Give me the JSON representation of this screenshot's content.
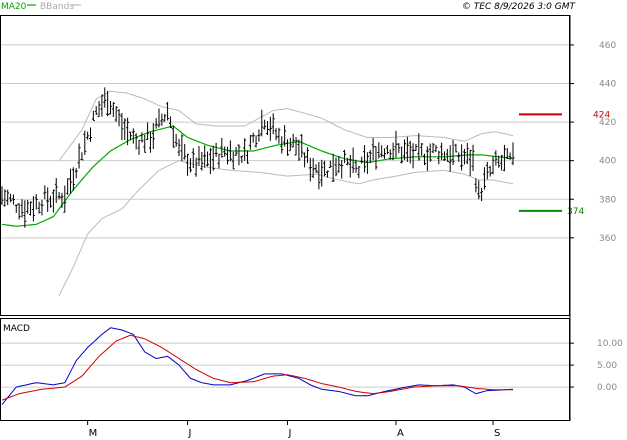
{
  "header": {
    "legend_ma": "MA20",
    "legend_bb": "BBands",
    "copyright": "© TEC 8/9/2026 3:0 GMT"
  },
  "colors": {
    "ma": "#00aa00",
    "bands": "#bbbbbb",
    "price": "#000000",
    "macd": "#0000cc",
    "signal": "#cc0000",
    "resistance": "#cc0000",
    "support": "#008800",
    "grid": "#cccccc",
    "axis_text": "#888888"
  },
  "chart_data": [
    {
      "type": "ohlc",
      "panel": "price",
      "y_ticks": [
        360,
        380,
        400,
        420,
        440,
        460
      ],
      "ylim": [
        320,
        475
      ],
      "x_months": [
        "M",
        "J",
        "J",
        "A",
        "S"
      ],
      "month_bar_index": [
        30,
        65,
        100,
        138,
        172
      ],
      "n_bars": 180,
      "close_keypoints": [
        [
          0,
          382
        ],
        [
          8,
          375
        ],
        [
          15,
          380
        ],
        [
          22,
          382
        ],
        [
          28,
          405
        ],
        [
          33,
          425
        ],
        [
          37,
          433
        ],
        [
          42,
          418
        ],
        [
          47,
          410
        ],
        [
          52,
          412
        ],
        [
          58,
          426
        ],
        [
          62,
          405
        ],
        [
          67,
          398
        ],
        [
          72,
          400
        ],
        [
          78,
          405
        ],
        [
          85,
          403
        ],
        [
          92,
          422
        ],
        [
          97,
          412
        ],
        [
          103,
          408
        ],
        [
          108,
          398
        ],
        [
          113,
          395
        ],
        [
          118,
          400
        ],
        [
          125,
          395
        ],
        [
          131,
          405
        ],
        [
          135,
          407
        ],
        [
          140,
          405
        ],
        [
          145,
          403
        ],
        [
          152,
          405
        ],
        [
          158,
          403
        ],
        [
          162,
          402
        ],
        [
          165,
          400
        ],
        [
          167,
          382
        ],
        [
          170,
          392
        ],
        [
          173,
          398
        ],
        [
          177,
          400
        ],
        [
          179,
          400
        ]
      ],
      "ma20_keypoints": [
        [
          0,
          367
        ],
        [
          5,
          366
        ],
        [
          12,
          367
        ],
        [
          18,
          371
        ],
        [
          25,
          385
        ],
        [
          32,
          397
        ],
        [
          38,
          405
        ],
        [
          45,
          411
        ],
        [
          52,
          415
        ],
        [
          60,
          418
        ],
        [
          65,
          412
        ],
        [
          72,
          408
        ],
        [
          80,
          405
        ],
        [
          88,
          405
        ],
        [
          96,
          408
        ],
        [
          104,
          410
        ],
        [
          112,
          405
        ],
        [
          120,
          401
        ],
        [
          128,
          399
        ],
        [
          136,
          401
        ],
        [
          145,
          402
        ],
        [
          155,
          402
        ],
        [
          163,
          403
        ],
        [
          168,
          403
        ],
        [
          174,
          402
        ],
        [
          179,
          401
        ]
      ],
      "bb_upper_keypoints": [
        [
          20,
          400
        ],
        [
          28,
          416
        ],
        [
          33,
          432
        ],
        [
          38,
          436
        ],
        [
          44,
          435
        ],
        [
          50,
          432
        ],
        [
          56,
          428
        ],
        [
          62,
          426
        ],
        [
          68,
          419
        ],
        [
          75,
          418
        ],
        [
          85,
          418
        ],
        [
          95,
          426
        ],
        [
          100,
          427
        ],
        [
          105,
          425
        ],
        [
          112,
          422
        ],
        [
          120,
          416
        ],
        [
          128,
          412
        ],
        [
          136,
          412
        ],
        [
          145,
          413
        ],
        [
          155,
          412
        ],
        [
          162,
          410
        ],
        [
          168,
          414
        ],
        [
          173,
          415
        ],
        [
          179,
          413
        ]
      ],
      "bb_lower_keypoints": [
        [
          20,
          330
        ],
        [
          25,
          345
        ],
        [
          30,
          362
        ],
        [
          35,
          370
        ],
        [
          42,
          375
        ],
        [
          48,
          385
        ],
        [
          55,
          395
        ],
        [
          62,
          400
        ],
        [
          70,
          397
        ],
        [
          80,
          395
        ],
        [
          90,
          394
        ],
        [
          100,
          392
        ],
        [
          110,
          393
        ],
        [
          118,
          390
        ],
        [
          125,
          388
        ],
        [
          130,
          390
        ],
        [
          138,
          392
        ],
        [
          145,
          394
        ],
        [
          155,
          395
        ],
        [
          162,
          393
        ],
        [
          167,
          390
        ],
        [
          172,
          390
        ],
        [
          179,
          388
        ]
      ],
      "level_lines": [
        {
          "value": 424,
          "label": "424",
          "kind": "resistance"
        },
        {
          "value": 374,
          "label": "374",
          "kind": "support"
        }
      ]
    },
    {
      "type": "line",
      "panel": "macd",
      "title": "MACD",
      "y_ticks": [
        0,
        5,
        10
      ],
      "y_tick_labels": [
        "0.00",
        "5.00",
        "10.00"
      ],
      "ylim": [
        -7.5,
        15.5
      ],
      "series": [
        {
          "role": "macd",
          "keypoints": [
            [
              0,
              -4
            ],
            [
              5,
              0
            ],
            [
              12,
              1
            ],
            [
              18,
              0.5
            ],
            [
              22,
              1
            ],
            [
              26,
              6
            ],
            [
              30,
              9
            ],
            [
              35,
              12
            ],
            [
              38,
              13.5
            ],
            [
              42,
              13
            ],
            [
              46,
              12
            ],
            [
              50,
              8
            ],
            [
              54,
              6.5
            ],
            [
              58,
              7
            ],
            [
              62,
              5
            ],
            [
              66,
              2
            ],
            [
              70,
              1
            ],
            [
              74,
              0.5
            ],
            [
              80,
              0.5
            ],
            [
              86,
              1.5
            ],
            [
              92,
              3
            ],
            [
              98,
              3
            ],
            [
              104,
              2
            ],
            [
              108,
              0.5
            ],
            [
              112,
              -0.5
            ],
            [
              118,
              -1
            ],
            [
              124,
              -2
            ],
            [
              128,
              -2
            ],
            [
              134,
              -1
            ],
            [
              140,
              -0.2
            ],
            [
              146,
              0.5
            ],
            [
              152,
              0.3
            ],
            [
              158,
              0.5
            ],
            [
              162,
              0
            ],
            [
              166,
              -1.5
            ],
            [
              170,
              -0.8
            ],
            [
              174,
              -0.7
            ],
            [
              179,
              -0.5
            ]
          ]
        },
        {
          "role": "signal",
          "keypoints": [
            [
              0,
              -3
            ],
            [
              6,
              -1.5
            ],
            [
              14,
              -0.5
            ],
            [
              22,
              0
            ],
            [
              28,
              2.5
            ],
            [
              34,
              7
            ],
            [
              40,
              10.5
            ],
            [
              45,
              11.8
            ],
            [
              50,
              11
            ],
            [
              56,
              9
            ],
            [
              62,
              6.5
            ],
            [
              68,
              4
            ],
            [
              74,
              2
            ],
            [
              80,
              1
            ],
            [
              88,
              1.2
            ],
            [
              95,
              2.5
            ],
            [
              100,
              2.8
            ],
            [
              106,
              2
            ],
            [
              112,
              0.8
            ],
            [
              118,
              0
            ],
            [
              124,
              -1
            ],
            [
              130,
              -1.5
            ],
            [
              136,
              -1
            ],
            [
              144,
              0
            ],
            [
              152,
              0.3
            ],
            [
              160,
              0.3
            ],
            [
              166,
              -0.3
            ],
            [
              172,
              -0.6
            ],
            [
              179,
              -0.6
            ]
          ]
        }
      ]
    }
  ]
}
